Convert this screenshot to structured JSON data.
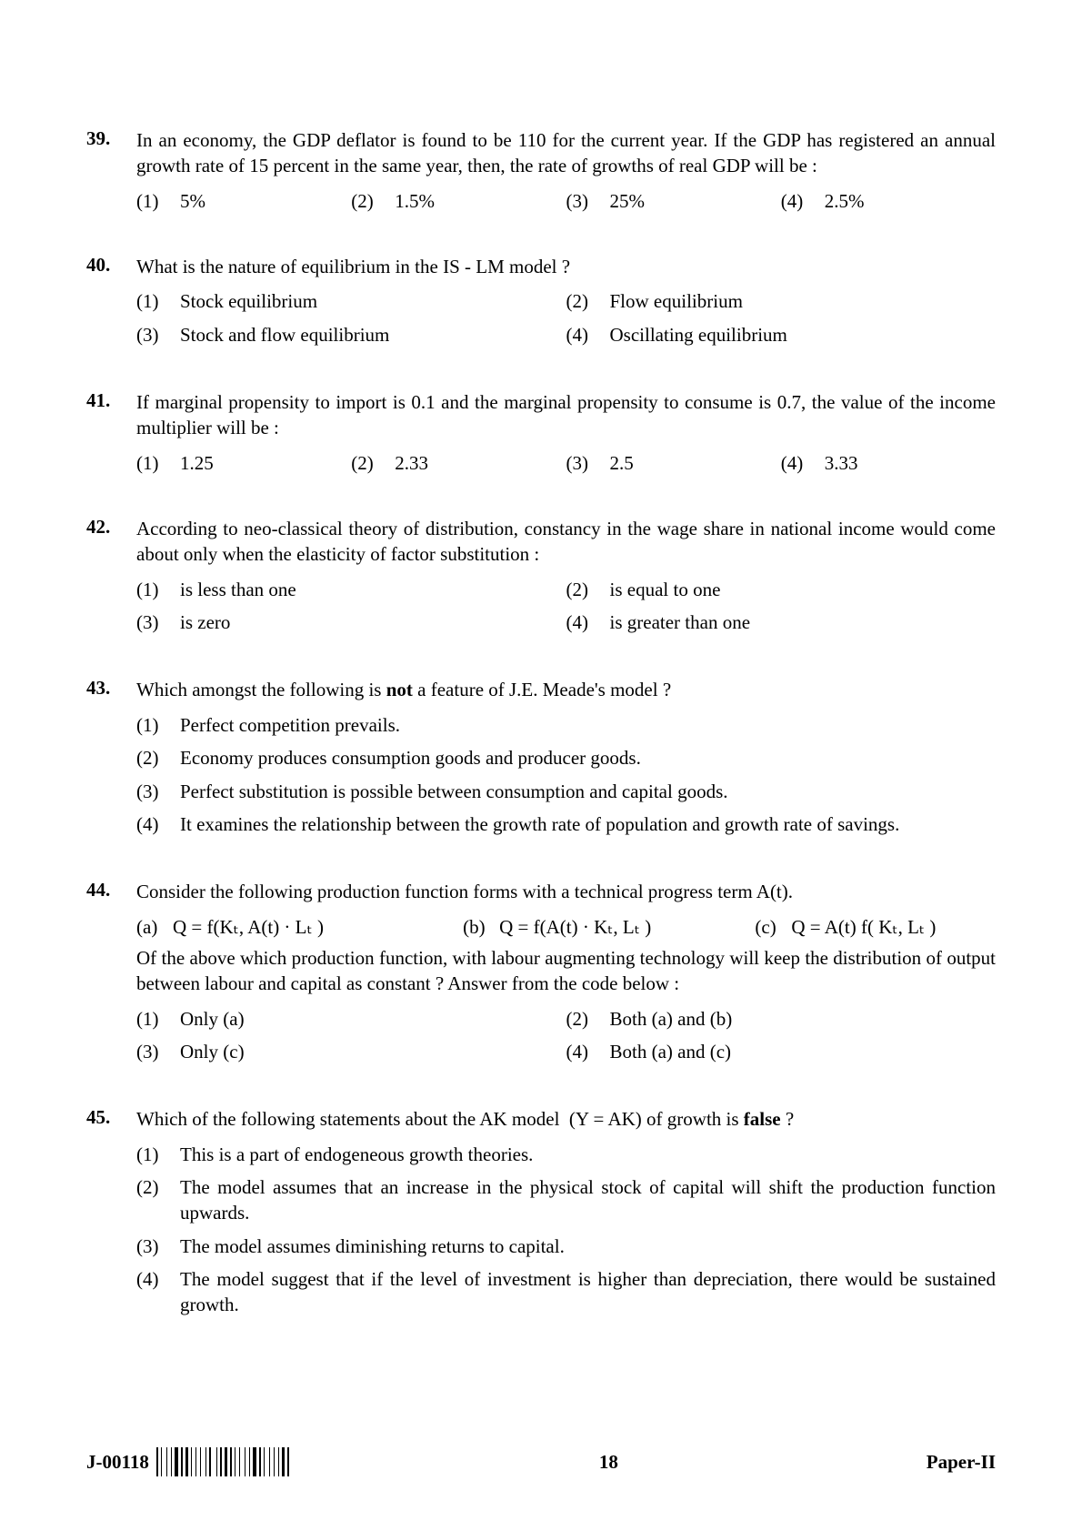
{
  "footer": {
    "code": "J-00118",
    "page_number": "18",
    "paper_label": "Paper-II"
  },
  "questions": [
    {
      "number": "39.",
      "text": "In an economy, the GDP deflator is found to be 110 for the current year. If the GDP has registered an annual growth rate of 15 percent in the same year, then, the rate of growths of real GDP will be :",
      "layout": "4col",
      "options": [
        {
          "label": "(1)",
          "text": "5%"
        },
        {
          "label": "(2)",
          "text": "1.5%"
        },
        {
          "label": "(3)",
          "text": "25%"
        },
        {
          "label": "(4)",
          "text": "2.5%"
        }
      ]
    },
    {
      "number": "40.",
      "text": "What is the nature of equilibrium in the IS - LM model ?",
      "layout": "2col",
      "options": [
        {
          "label": "(1)",
          "text": "Stock equilibrium"
        },
        {
          "label": "(2)",
          "text": "Flow equilibrium"
        },
        {
          "label": "(3)",
          "text": "Stock and flow equilibrium"
        },
        {
          "label": "(4)",
          "text": "Oscillating equilibrium"
        }
      ]
    },
    {
      "number": "41.",
      "text": "If marginal propensity to import is 0.1 and the marginal propensity to consume is 0.7, the value of the income multiplier will be :",
      "layout": "4col",
      "options": [
        {
          "label": "(1)",
          "text": "1.25"
        },
        {
          "label": "(2)",
          "text": "2.33"
        },
        {
          "label": "(3)",
          "text": "2.5"
        },
        {
          "label": "(4)",
          "text": "3.33"
        }
      ]
    },
    {
      "number": "42.",
      "text": "According to neo-classical theory of distribution, constancy in the wage share in national income would come about only when the elasticity of factor substitution :",
      "layout": "2col",
      "options": [
        {
          "label": "(1)",
          "text": "is less than one"
        },
        {
          "label": "(2)",
          "text": "is equal to one"
        },
        {
          "label": "(3)",
          "text": "is zero"
        },
        {
          "label": "(4)",
          "text": "is greater than one"
        }
      ]
    },
    {
      "number": "43.",
      "text_html": "Which amongst the following is <b>not</b> a feature of J.E. Meade's model ?",
      "layout": "1col",
      "options": [
        {
          "label": "(1)",
          "text": "Perfect competition prevails."
        },
        {
          "label": "(2)",
          "text": "Economy produces consumption goods and producer goods."
        },
        {
          "label": "(3)",
          "text": "Perfect substitution is possible between consumption and capital goods."
        },
        {
          "label": "(4)",
          "text": "It examines the relationship between the growth rate of population and growth rate of savings."
        }
      ]
    },
    {
      "number": "44.",
      "text": "Consider the following production function forms with a technical progress term A(t).",
      "sub_options": [
        {
          "label": "(a)",
          "text": "Q = f(Kₜ, A(t) · Lₜ )"
        },
        {
          "label": "(b)",
          "text": "Q = f(A(t) · Kₜ, Lₜ )"
        },
        {
          "label": "(c)",
          "text": "Q = A(t) f( Kₜ, Lₜ )"
        }
      ],
      "text2": "Of the above which production function, with labour augmenting technology will keep the distribution of output between labour and capital as constant ?  Answer from the code below :",
      "layout": "2col",
      "options": [
        {
          "label": "(1)",
          "text": "Only (a)"
        },
        {
          "label": "(2)",
          "text": "Both (a) and (b)"
        },
        {
          "label": "(3)",
          "text": "Only (c)"
        },
        {
          "label": "(4)",
          "text": "Both (a) and (c)"
        }
      ]
    },
    {
      "number": "45.",
      "text_html": "Which of the following statements about the AK model &nbsp;(Y = AK) of growth is <b>false</b> ?",
      "layout": "1col",
      "options": [
        {
          "label": "(1)",
          "text": "This is a part  of endogeneous growth theories."
        },
        {
          "label": "(2)",
          "text": "The model assumes that an increase in the physical stock of capital will shift the production function upwards."
        },
        {
          "label": "(3)",
          "text": "The model assumes diminishing returns to capital."
        },
        {
          "label": "(4)",
          "text": "The model suggest that if the level of investment is higher than depreciation, there would be sustained growth."
        }
      ]
    }
  ]
}
